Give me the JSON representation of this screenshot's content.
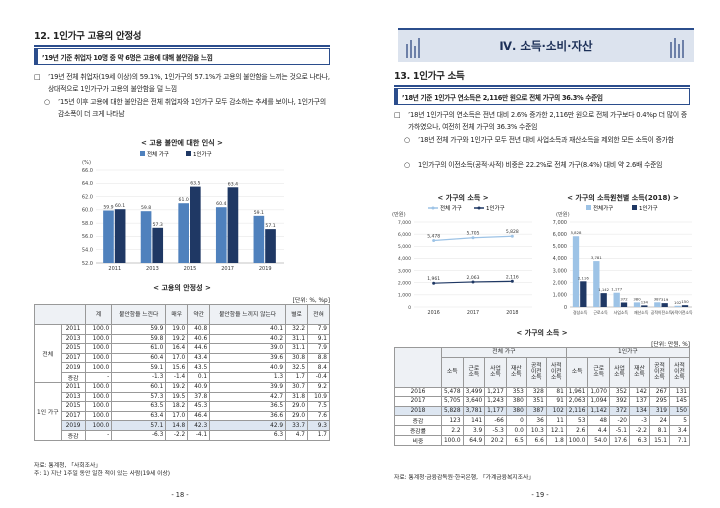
{
  "left": {
    "section_title": "12. 1인가구 고용의 안정성",
    "box_title": "’19년 기준 취업자 10명 중 약 6명은 고용에 대해 불안감을 느낌",
    "bullets": [
      {
        "marker": "□",
        "text": "’19년 전체 취업자(19세 이상)의 59.1%, 1인가구의 57.1%가 고용의 불안함을 느끼는 것으로 나타나, 상대적으로 1인가구가 고용의 불안함을 덜 느낌"
      },
      {
        "marker": "○",
        "text": "’15년 이후 고용에 대한 불안감은 전체 취업자와 1인가구 모두 감소하는 추세를 보이나, 1인가구의 감소폭이 더 크게 나타남"
      }
    ],
    "chart_title": "< 고용 불안에 대한 인식 >",
    "table_title": "< 고용의 안정성 >",
    "table_unit": "[단위: %, %p]",
    "table_headers": [
      "",
      "",
      "계",
      "불안함을 느낀다",
      "매우",
      "약간",
      "불안함을 느끼지 않는다",
      "별로",
      "전혀"
    ],
    "group_labels": [
      "전체",
      "1인 가구"
    ],
    "rows_all": [
      [
        "2011",
        "100.0",
        "59.9",
        "19.0",
        "40.8",
        "40.1",
        "32.2",
        "7.9"
      ],
      [
        "2013",
        "100.0",
        "59.8",
        "19.2",
        "40.6",
        "40.2",
        "31.1",
        "9.1"
      ],
      [
        "2015",
        "100.0",
        "61.0",
        "16.4",
        "44.6",
        "39.0",
        "31.1",
        "7.9"
      ],
      [
        "2017",
        "100.0",
        "60.4",
        "17.0",
        "43.4",
        "39.6",
        "30.8",
        "8.8"
      ],
      [
        "2019",
        "100.0",
        "59.1",
        "15.6",
        "43.5",
        "40.9",
        "32.5",
        "8.4"
      ],
      [
        "증감",
        "-",
        "-1.3",
        "-1.4",
        "0.1",
        "1.3",
        "1.7",
        "-0.4"
      ]
    ],
    "rows_single": [
      [
        "2011",
        "100.0",
        "60.1",
        "19.2",
        "40.9",
        "39.9",
        "30.7",
        "9.2"
      ],
      [
        "2013",
        "100.0",
        "57.3",
        "19.5",
        "37.8",
        "42.7",
        "31.8",
        "10.9"
      ],
      [
        "2015",
        "100.0",
        "63.5",
        "18.2",
        "45.3",
        "36.5",
        "29.0",
        "7.5"
      ],
      [
        "2017",
        "100.0",
        "63.4",
        "17.0",
        "46.4",
        "36.6",
        "29.0",
        "7.6"
      ],
      [
        "2019",
        "100.0",
        "57.1",
        "14.8",
        "42.3",
        "42.9",
        "33.7",
        "9.3"
      ],
      [
        "증감",
        "-",
        "-6.3",
        "-2.2",
        "-4.1",
        "6.3",
        "4.7",
        "1.7"
      ]
    ],
    "source_1": "자료: 통계청, 「사회조사」",
    "source_2": "주: 1) 지난 1주일 동안 일한 적이 있는 사람(19세 이상)",
    "page_number": "- 18 -"
  },
  "right": {
    "banner": "Ⅳ. 소득·소비·자산",
    "section_title": "13. 1인가구 소득",
    "box_title": "’18년 기준 1인가구 연소득은 2,116만 원으로 전체 가구의 36.3% 수준임",
    "bullets": [
      {
        "marker": "□",
        "text": "’18년 1인가구의 연소득은 전년 대비 2.6% 증가한 2,116만 원으로 전체 가구보다 0.4%p 더 많이 증가하였으나, 여전히 전체 가구의 36.3% 수준임"
      },
      {
        "marker": "○",
        "text": "’18년 전체 가구와 1인가구 모두 전년 대비 사업소득과 재산소득을 제외한 모든 소득이 증가함"
      },
      {
        "marker": "○",
        "text": "1인가구의 이전소득(공적·사적) 비중은 22.2%로 전체 가구(8.4%) 대비 약 2.6배 수준임"
      }
    ],
    "chart1_title": "< 가구의 소득 >",
    "chart2_title": "< 가구의 소득원천별 소득(2018) >",
    "table_title": "< 가구의 소득 >",
    "table_unit": "[단위: 만원, %]",
    "group_headers": [
      "전체 가구",
      "1인가구"
    ],
    "col_headers": [
      "소득",
      "근로 소득",
      "사업 소득",
      "재산 소득",
      "공적 이전 소득",
      "사적 이전 소득"
    ],
    "rows": [
      [
        "2016",
        "5,478",
        "3,499",
        "1,217",
        "353",
        "328",
        "81",
        "1,961",
        "1,070",
        "352",
        "142",
        "267",
        "131"
      ],
      [
        "2017",
        "5,705",
        "3,640",
        "1,243",
        "380",
        "351",
        "91",
        "2,063",
        "1,094",
        "392",
        "137",
        "295",
        "145"
      ],
      [
        "2018",
        "5,828",
        "3,781",
        "1,177",
        "380",
        "387",
        "102",
        "2,116",
        "1,142",
        "372",
        "134",
        "319",
        "150"
      ],
      [
        "증감",
        "123",
        "141",
        "-66",
        "0",
        "36",
        "11",
        "53",
        "48",
        "-20",
        "-3",
        "24",
        "5"
      ],
      [
        "증감률",
        "2.2",
        "3.9",
        "-5.3",
        "0.0",
        "10.3",
        "12.1",
        "2.6",
        "4.4",
        "-5.1",
        "-2.2",
        "8.1",
        "3.4"
      ],
      [
        "비중",
        "100.0",
        "64.9",
        "20.2",
        "6.5",
        "6.6",
        "1.8",
        "100.0",
        "54.0",
        "17.6",
        "6.3",
        "15.1",
        "7.1"
      ]
    ],
    "source": "자료: 통계청·금융감독원·한국은행, 「가계금융복지조사」",
    "page_number": "- 19 -"
  },
  "chart_data": [
    {
      "type": "bar",
      "categories": [
        "2011",
        "2013",
        "2015",
        "2017",
        "2019"
      ],
      "series": [
        {
          "name": "전체 가구",
          "values": [
            59.9,
            59.8,
            61.0,
            60.4,
            59.1
          ],
          "color": "#4f81bd"
        },
        {
          "name": "1인가구",
          "values": [
            60.1,
            57.3,
            63.5,
            63.4,
            57.1
          ],
          "color": "#1f3864"
        }
      ],
      "ylabel": "(%)",
      "yticks": [
        52.0,
        54.0,
        56.0,
        58.0,
        60.0,
        62.0,
        64.0,
        66.0
      ],
      "ylim": [
        52,
        66
      ],
      "legend": "top"
    },
    {
      "type": "line",
      "categories": [
        "2016",
        "2017",
        "2018"
      ],
      "series": [
        {
          "name": "전체 가구",
          "values": [
            5478,
            5705,
            5828
          ],
          "color": "#9dc3e6"
        },
        {
          "name": "1인가구",
          "values": [
            1961,
            2063,
            2116
          ],
          "color": "#1f3864"
        }
      ],
      "ylabel": "(만원)",
      "yticks": [
        0,
        1000,
        2000,
        3000,
        4000,
        5000,
        6000,
        7000
      ],
      "ylim": [
        0,
        7000
      ],
      "legend": "top"
    },
    {
      "type": "bar",
      "categories": [
        "경상소득",
        "근로소득",
        "사업소득",
        "재산소득",
        "공적이전소득",
        "사적이전소득"
      ],
      "series": [
        {
          "name": "전체가구",
          "values": [
            5828,
            3781,
            1177,
            380,
            387,
            102
          ],
          "color": "#9dc3e6"
        },
        {
          "name": "1인가구",
          "values": [
            2116,
            1142,
            372,
            134,
            319,
            150
          ],
          "color": "#1f3864"
        }
      ],
      "ylabel": "(만원)",
      "yticks": [
        0,
        1000,
        2000,
        3000,
        4000,
        5000,
        6000,
        7000
      ],
      "ylim": [
        0,
        7000
      ],
      "legend": "top"
    }
  ]
}
